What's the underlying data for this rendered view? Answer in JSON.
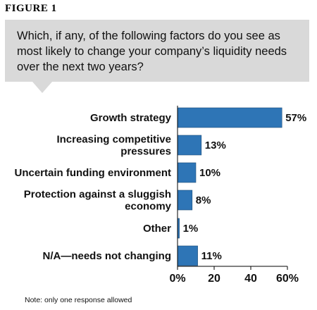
{
  "figure_label": "FIGURE 1",
  "question": "Which, if any, of the following factors do you see as most likely to change your company’s liquidity needs over the next two years?",
  "note": "Note: only one response allowed",
  "colors": {
    "bar": "#2e75b6",
    "question_box": "#d9d9d9"
  },
  "chart_data": {
    "type": "bar",
    "orientation": "horizontal",
    "categories": [
      [
        "Growth strategy"
      ],
      [
        "Increasing competitive",
        "pressures"
      ],
      [
        "Uncertain funding environment"
      ],
      [
        "Protection against a sluggish",
        "economy"
      ],
      [
        "Other"
      ],
      [
        "N/A—needs not changing"
      ]
    ],
    "values": [
      57,
      13,
      10,
      8,
      1,
      11
    ],
    "value_labels": [
      "57%",
      "13%",
      "10%",
      "8%",
      "1%",
      "11%"
    ],
    "xlim": [
      0,
      60
    ],
    "ticks": [
      0,
      20,
      40,
      60
    ],
    "tick_labels": [
      "0%",
      "20",
      "40",
      "60%"
    ],
    "grid": false,
    "legend": "none"
  }
}
